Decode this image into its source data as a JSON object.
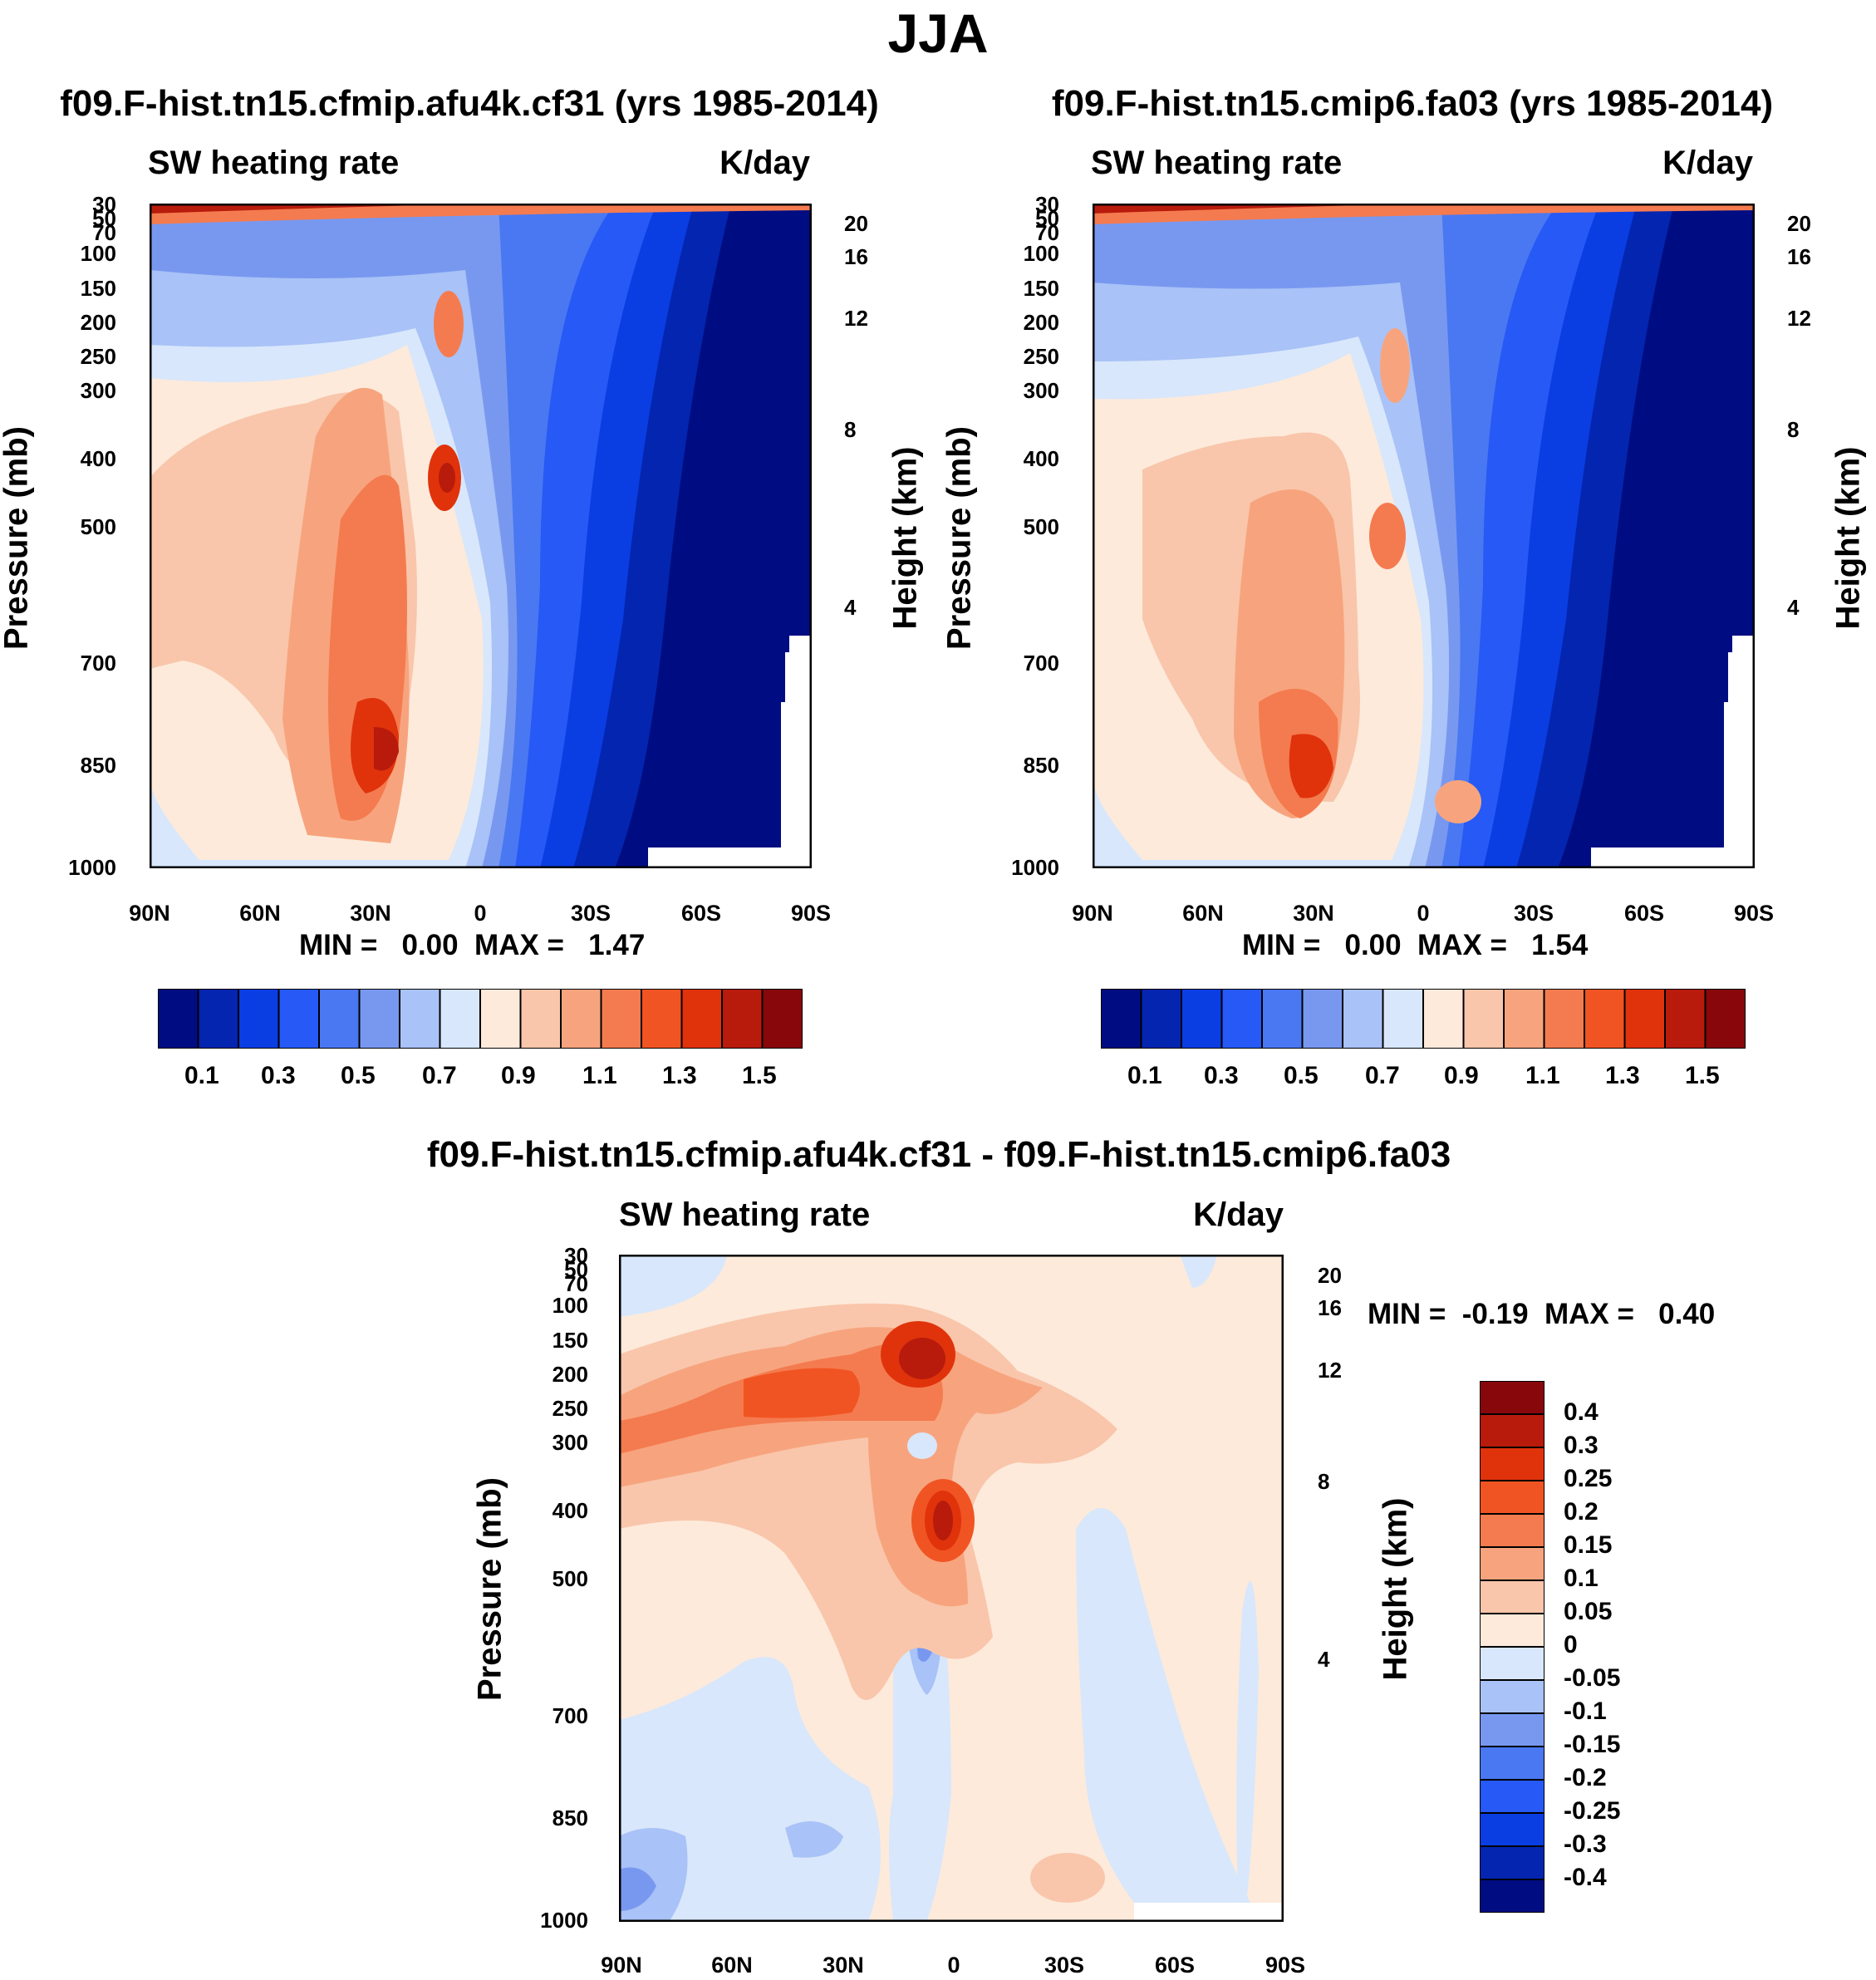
{
  "page_title": "JJA",
  "colors": {
    "seq": [
      "#000d82",
      "#0425af",
      "#0a3ee3",
      "#2659f5",
      "#4a78f2",
      "#7898f0",
      "#a9c2f7",
      "#d8e7fb",
      "#fdeadb",
      "#f9c6ab",
      "#f7a47e",
      "#f47b4f",
      "#f15423",
      "#e0330b",
      "#b81b0c",
      "#88070b"
    ],
    "div": [
      "#000d82",
      "#0425af",
      "#0a3ee3",
      "#2659f5",
      "#4a78f2",
      "#7898f0",
      "#a9c2f7",
      "#d8e7fb",
      "#fdeadb",
      "#f9c6ab",
      "#f7a47e",
      "#f47b4f",
      "#f15423",
      "#e0330b",
      "#b81b0c",
      "#88070b"
    ]
  },
  "chart_data": [
    {
      "type": "heatmap",
      "title": "f09.F-hist.tn15.cfmip.afu4k.cf31 (yrs 1985-2014)",
      "left_string": "SW heating rate",
      "right_string": "K/day",
      "ylabel": "Pressure (mb)",
      "ylabel_right": "Height (km)",
      "x_ticks": [
        "90N",
        "60N",
        "30N",
        "0",
        "30S",
        "60S",
        "90S"
      ],
      "y_ticks": [
        "30",
        "50",
        "70",
        "100",
        "150",
        "200",
        "250",
        "300",
        "400",
        "500",
        "700",
        "850",
        "1000"
      ],
      "height_ticks": [
        "20",
        "16",
        "12",
        "8",
        "4"
      ],
      "stats": "MIN =   0.00  MAX =   1.47",
      "colorbar_levels": [
        "0.1",
        "0.3",
        "0.5",
        "0.7",
        "0.9",
        "1.1",
        "1.3",
        "1.5"
      ],
      "min": 0.0,
      "max": 1.47
    },
    {
      "type": "heatmap",
      "title": "f09.F-hist.tn15.cmip6.fa03 (yrs 1985-2014)",
      "left_string": "SW heating rate",
      "right_string": "K/day",
      "ylabel": "Pressure (mb)",
      "ylabel_right": "Height (km)",
      "x_ticks": [
        "90N",
        "60N",
        "30N",
        "0",
        "30S",
        "60S",
        "90S"
      ],
      "y_ticks": [
        "30",
        "50",
        "70",
        "100",
        "150",
        "200",
        "250",
        "300",
        "400",
        "500",
        "700",
        "850",
        "1000"
      ],
      "height_ticks": [
        "20",
        "16",
        "12",
        "8",
        "4"
      ],
      "stats": "MIN =   0.00  MAX =   1.54",
      "colorbar_levels": [
        "0.1",
        "0.3",
        "0.5",
        "0.7",
        "0.9",
        "1.1",
        "1.3",
        "1.5"
      ],
      "min": 0.0,
      "max": 1.54
    },
    {
      "type": "heatmap",
      "title": "f09.F-hist.tn15.cfmip.afu4k.cf31 - f09.F-hist.tn15.cmip6.fa03",
      "left_string": "SW heating rate",
      "right_string": "K/day",
      "ylabel": "Pressure (mb)",
      "ylabel_right": "Height (km)",
      "x_ticks": [
        "90N",
        "60N",
        "30N",
        "0",
        "30S",
        "60S",
        "90S"
      ],
      "y_ticks": [
        "30",
        "50",
        "70",
        "100",
        "150",
        "200",
        "250",
        "300",
        "400",
        "500",
        "700",
        "850",
        "1000"
      ],
      "height_ticks": [
        "20",
        "16",
        "12",
        "8",
        "4"
      ],
      "stats": "MIN =  -0.19  MAX =   0.40",
      "colorbar_levels": [
        "0.4",
        "0.3",
        "0.25",
        "0.2",
        "0.15",
        "0.1",
        "0.05",
        "0",
        "-0.05",
        "-0.1",
        "-0.15",
        "-0.2",
        "-0.25",
        "-0.3",
        "-0.4"
      ],
      "min": -0.19,
      "max": 0.4
    }
  ]
}
